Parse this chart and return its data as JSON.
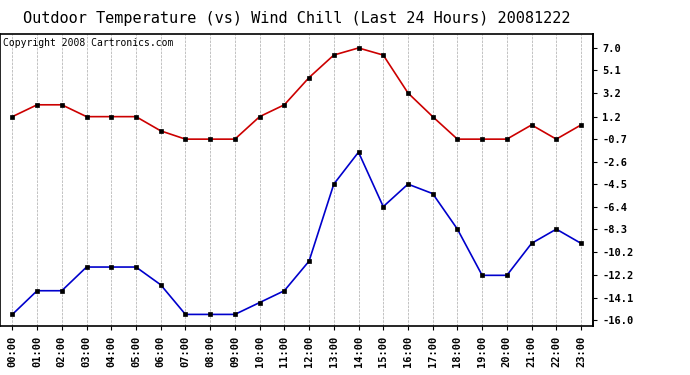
{
  "title": "Outdoor Temperature (vs) Wind Chill (Last 24 Hours) 20081222",
  "copyright": "Copyright 2008 Cartronics.com",
  "x_labels": [
    "00:00",
    "01:00",
    "02:00",
    "03:00",
    "04:00",
    "05:00",
    "06:00",
    "07:00",
    "08:00",
    "09:00",
    "10:00",
    "11:00",
    "12:00",
    "13:00",
    "14:00",
    "15:00",
    "16:00",
    "17:00",
    "18:00",
    "19:00",
    "20:00",
    "21:00",
    "22:00",
    "23:00"
  ],
  "red_data": [
    1.2,
    2.2,
    2.2,
    1.2,
    1.2,
    1.2,
    0.0,
    -0.7,
    -0.7,
    -0.7,
    1.2,
    2.2,
    4.5,
    6.4,
    7.0,
    6.4,
    3.2,
    1.2,
    -0.7,
    -0.7,
    -0.7,
    0.5,
    -0.7,
    0.5
  ],
  "blue_data": [
    -15.5,
    -13.5,
    -13.5,
    -11.5,
    -11.5,
    -11.5,
    -13.0,
    -15.5,
    -15.5,
    -15.5,
    -14.5,
    -13.5,
    -11.0,
    -4.5,
    -1.8,
    -6.4,
    -4.5,
    -5.3,
    -8.3,
    -12.2,
    -12.2,
    -9.5,
    -8.3,
    -9.5
  ],
  "y_ticks": [
    7.0,
    5.1,
    3.2,
    1.2,
    -0.7,
    -2.6,
    -4.5,
    -6.4,
    -8.3,
    -10.2,
    -12.2,
    -14.1,
    -16.0
  ],
  "ylim": [
    -16.5,
    8.2
  ],
  "red_color": "#cc0000",
  "blue_color": "#0000cc",
  "grid_color": "#aaaaaa",
  "bg_color": "#ffffff",
  "title_fontsize": 11,
  "copyright_fontsize": 7,
  "tick_fontsize": 7.5,
  "figwidth": 6.9,
  "figheight": 3.75,
  "dpi": 100
}
